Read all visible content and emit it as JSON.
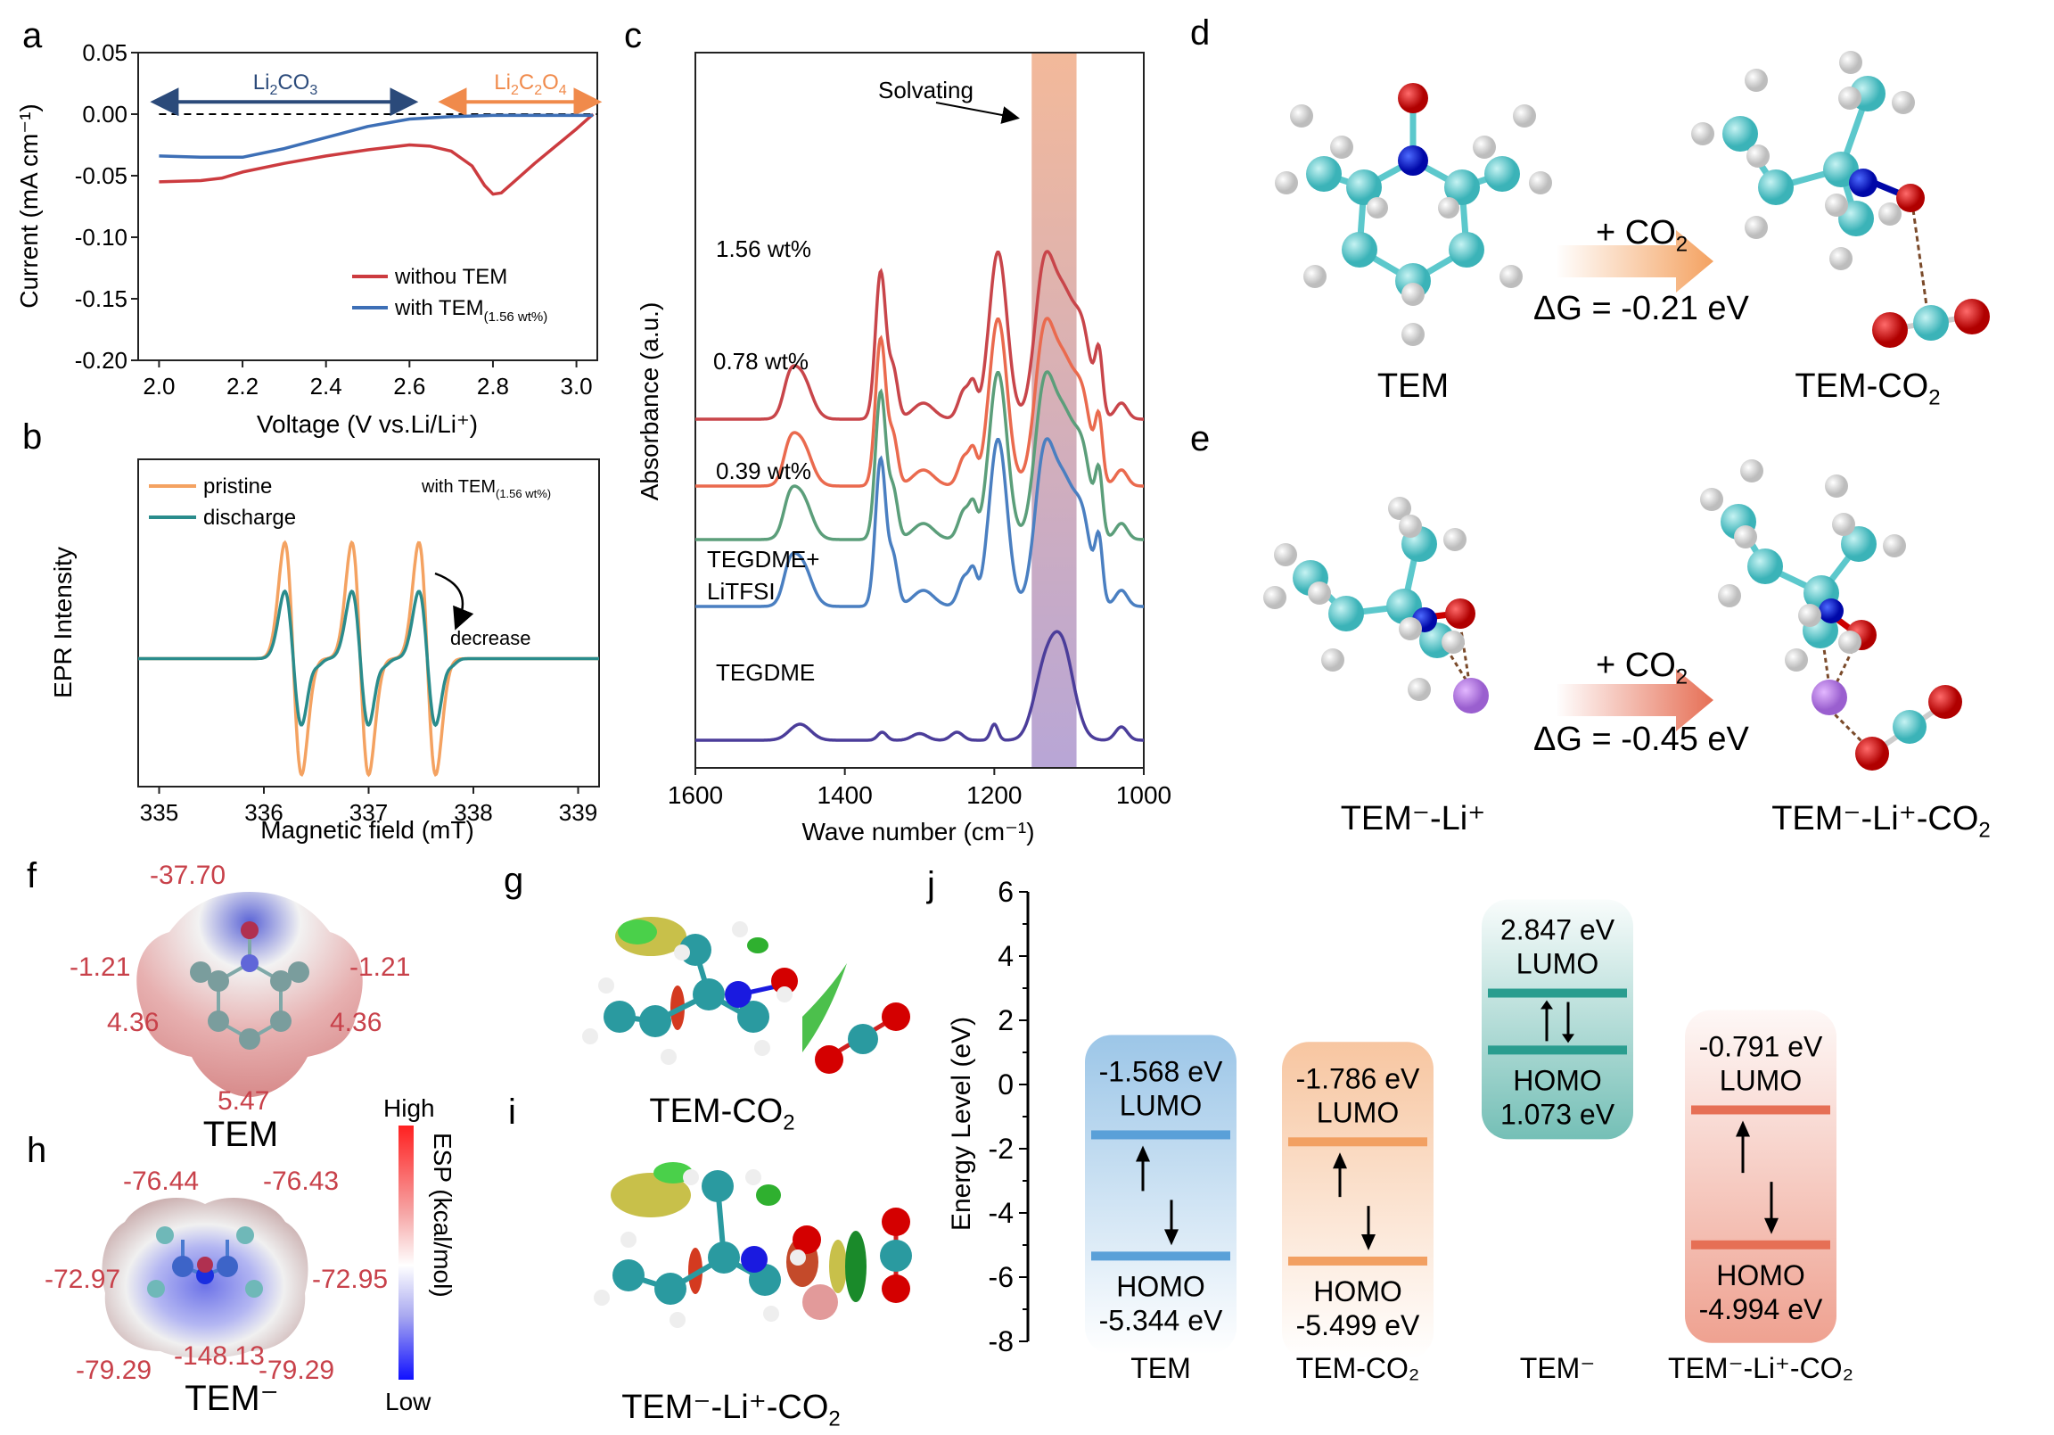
{
  "panels": {
    "a": "a",
    "b": "b",
    "c": "c",
    "d": "d",
    "e": "e",
    "f": "f",
    "g": "g",
    "h": "h",
    "i": "i",
    "j": "j"
  },
  "chart_data": [
    {
      "id": "a",
      "type": "line",
      "xlabel": "Voltage (V vs.Li/Li⁺)",
      "ylabel": "Current (mA cm⁻¹)",
      "xlim": [
        1.95,
        3.05
      ],
      "ylim": [
        -0.2,
        0.05
      ],
      "xticks": [
        "2.0",
        "2.2",
        "2.4",
        "2.6",
        "2.8",
        "3.0"
      ],
      "xtick_values": [
        2.0,
        2.2,
        2.4,
        2.6,
        2.8,
        3.0
      ],
      "yticks": [
        "0.05",
        "0.00",
        "-0.05",
        "-0.10",
        "-0.15",
        "-0.20"
      ],
      "ytick_values": [
        0.05,
        0.0,
        -0.05,
        -0.1,
        -0.15,
        -0.2
      ],
      "annotations": [
        {
          "text": "Li₂CO₃",
          "range": [
            2.0,
            2.6
          ],
          "color": "#2b4a7a"
        },
        {
          "text": "Li₂C₂O₄",
          "range": [
            2.69,
            3.04
          ],
          "color": "#f08a4b"
        }
      ],
      "legend": "bottom-right",
      "series": [
        {
          "name": "withou TEM",
          "color": "#cc3b3f",
          "x": [
            2.0,
            2.1,
            2.15,
            2.2,
            2.3,
            2.4,
            2.5,
            2.6,
            2.65,
            2.7,
            2.75,
            2.78,
            2.8,
            2.82,
            2.85,
            2.9,
            2.95,
            3.0,
            3.04
          ],
          "y": [
            -0.055,
            -0.054,
            -0.052,
            -0.047,
            -0.04,
            -0.034,
            -0.029,
            -0.025,
            -0.026,
            -0.03,
            -0.042,
            -0.058,
            -0.065,
            -0.064,
            -0.055,
            -0.04,
            -0.026,
            -0.012,
            0.0
          ]
        },
        {
          "name": "with TEM(1.56 wt%)",
          "color": "#3d6fb6",
          "x": [
            2.0,
            2.1,
            2.2,
            2.3,
            2.4,
            2.5,
            2.6,
            2.7,
            2.8,
            2.9,
            3.0,
            3.04
          ],
          "y": [
            -0.034,
            -0.035,
            -0.035,
            -0.028,
            -0.019,
            -0.01,
            -0.004,
            -0.002,
            -0.001,
            -0.001,
            -0.001,
            -0.001
          ]
        }
      ]
    },
    {
      "id": "b",
      "type": "line",
      "xlabel": "Magnetic field (mT)",
      "ylabel": "EPR Intensity",
      "xlim": [
        334.8,
        339.2
      ],
      "ylim": [
        -1.15,
        1.15
      ],
      "xticks": [
        "335",
        "336",
        "337",
        "338",
        "339"
      ],
      "xtick_values": [
        335,
        336,
        337,
        338,
        339
      ],
      "annotation": "with TEM(1.56 wt%)",
      "arrow_label": "decrease",
      "legend": "top-left",
      "peak_centers": [
        336.28,
        336.92,
        337.56
      ],
      "series": [
        {
          "name": "pristine",
          "color": "#f4a261",
          "amplitude": 1.0
        },
        {
          "name": "discharge",
          "color": "#2a8c8c",
          "amplitude": 0.58
        }
      ]
    },
    {
      "id": "c",
      "type": "line",
      "xlabel": "Wave number (cm⁻¹)",
      "ylabel": "Absorbance (a.u.)",
      "xlim": [
        1600,
        1000
      ],
      "xticks": [
        "1600",
        "1400",
        "1200",
        "1000"
      ],
      "xtick_values": [
        1600,
        1400,
        1200,
        1000
      ],
      "annotation": "Solvating",
      "highlight_band": [
        1150,
        1090
      ],
      "series": [
        {
          "name": "1.56 wt%",
          "color": "#c8454a",
          "offset": 4
        },
        {
          "name": "0.78 wt%",
          "color": "#ea6a4e",
          "offset": 3
        },
        {
          "name": "0.39 wt%",
          "color": "#5b9e7a",
          "offset": 2
        },
        {
          "name": "TEGDME+ LiTFSI",
          "color": "#4a7fc1",
          "offset": 1
        },
        {
          "name": "TEGDME",
          "color": "#4b3d9a",
          "offset": 0
        }
      ]
    },
    {
      "id": "j",
      "type": "bar",
      "ylabel": "Energy Level (eV)",
      "ylim": [
        -8,
        6
      ],
      "yticks": [
        "6",
        "4",
        "2",
        "0",
        "-2",
        "-4",
        "-6",
        "-8"
      ],
      "ytick_values": [
        6,
        4,
        2,
        0,
        -2,
        -4,
        -6,
        -8
      ],
      "categories": [
        "TEM",
        "TEM-CO₂",
        "TEM⁻",
        "TEM⁻-Li⁺-CO₂"
      ],
      "series": [
        {
          "name": "LUMO",
          "values": [
            -1.568,
            -1.786,
            2.847,
            -0.791
          ]
        },
        {
          "name": "HOMO",
          "values": [
            -5.344,
            -5.499,
            1.073,
            -4.994
          ]
        }
      ],
      "lumo_labels": [
        "-1.568 eV",
        "-1.786 eV",
        "2.847 eV",
        "-0.791 eV"
      ],
      "homo_labels": [
        "-5.344 eV",
        "-5.499 eV",
        "1.073 eV",
        "-4.994 eV"
      ],
      "colors": [
        "#5aa0d8",
        "#f2a062",
        "#2a9d8f",
        "#e66f55"
      ]
    }
  ],
  "panel_a": {
    "legend": [
      "withou TEM",
      "with TEM"
    ],
    "legend_sub": "(1.56 wt%)",
    "li2co3": [
      "Li",
      "2",
      "CO",
      "3"
    ],
    "li2c2o4": [
      "Li",
      "2",
      "C",
      "2",
      "O",
      "4"
    ]
  },
  "panel_b": {
    "with": "with TEM",
    "with_sub": "(1.56 wt%)",
    "decrease": "decrease"
  },
  "panel_c": {
    "labels": [
      "1.56 wt%",
      "0.78 wt%",
      "0.39 wt%",
      "TEGDME+",
      "LiTFSI",
      "TEGDME"
    ],
    "solvating": "Solvating"
  },
  "panel_d": {
    "left": "TEM",
    "right": "TEM-CO",
    "right_sub": "2",
    "reagent": "+ CO",
    "reagent_sub": "2",
    "dg": "ΔG = -0.21 eV"
  },
  "panel_e": {
    "left": "TEM⁻-Li⁺",
    "right": "TEM⁻-Li⁺-CO",
    "right_sub": "2",
    "reagent": "+ CO",
    "reagent_sub": "2",
    "dg": "ΔG = -0.45 eV"
  },
  "panel_f": {
    "title": "TEM",
    "values": [
      "-37.70",
      "-1.21",
      "-1.21",
      "4.36",
      "4.36",
      "5.47"
    ]
  },
  "panel_h": {
    "title": "TEM⁻",
    "values": [
      "-76.44",
      "-76.43",
      "-72.97",
      "-72.95",
      "-79.29",
      "-148.13",
      "-79.29"
    ]
  },
  "colorbar": {
    "high": "High",
    "low": "Low",
    "label": "ESP (kcal/mol)"
  },
  "panel_g": {
    "title": "TEM-CO",
    "sub": "2"
  },
  "panel_i": {
    "title": "TEM⁻-Li⁺-CO",
    "sub": "2"
  },
  "panel_j": {
    "lumo": "LUMO",
    "homo": "HOMO"
  }
}
